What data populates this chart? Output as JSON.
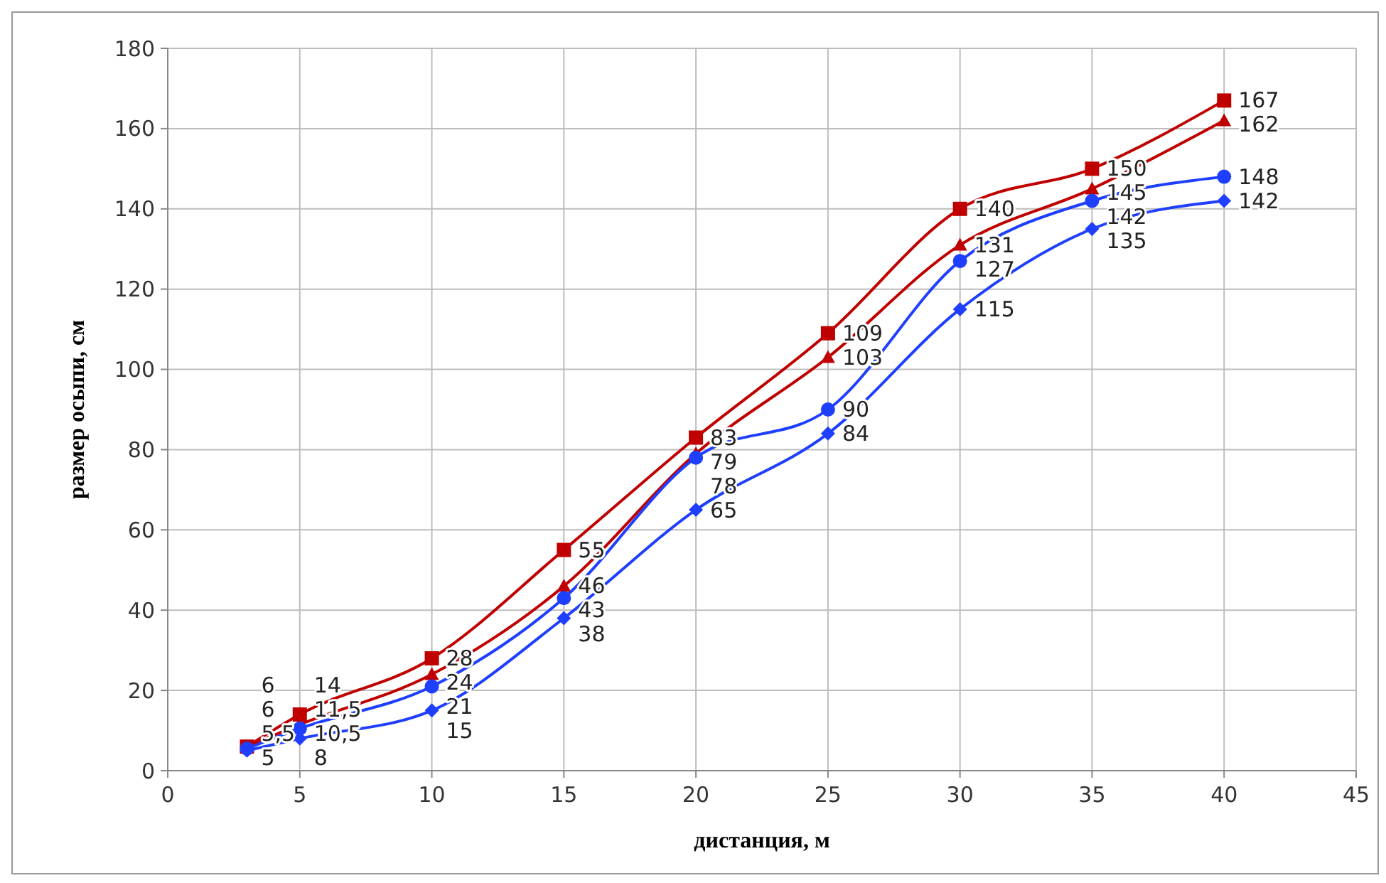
{
  "chart_data": {
    "type": "line",
    "xlabel": "дистанция, м",
    "ylabel": "размер осыпи, см",
    "x": [
      3,
      5,
      10,
      15,
      20,
      25,
      30,
      35,
      40
    ],
    "series": [
      {
        "color": "#c00000",
        "marker": "square",
        "values": [
          6,
          14,
          28,
          55,
          83,
          109,
          140,
          150,
          167
        ],
        "value_labels": [
          "6",
          "14",
          "28",
          "55",
          "83",
          "109",
          "140",
          "150",
          "167"
        ]
      },
      {
        "color": "#c00000",
        "marker": "triangle",
        "values": [
          6,
          11.5,
          24,
          46,
          79,
          103,
          131,
          145,
          162
        ],
        "value_labels": [
          "6",
          "11,5",
          "24",
          "46",
          "79",
          "103",
          "131",
          "145",
          "162"
        ]
      },
      {
        "color": "#1f3fff",
        "marker": "circle",
        "values": [
          5.5,
          10.5,
          21,
          43,
          78,
          90,
          127,
          142,
          148
        ],
        "value_labels": [
          "5,5",
          "10,5",
          "21",
          "43",
          "78",
          "90",
          "127",
          "142",
          "148"
        ]
      },
      {
        "color": "#1f3fff",
        "marker": "diamond",
        "values": [
          5,
          8,
          15,
          38,
          65,
          84,
          115,
          135,
          142
        ],
        "value_labels": [
          "5",
          "8",
          "15",
          "38",
          "65",
          "84",
          "115",
          "135",
          "142"
        ]
      }
    ],
    "xlim": [
      0,
      45
    ],
    "xticks": [
      0,
      5,
      10,
      15,
      20,
      25,
      30,
      35,
      40,
      45
    ],
    "ylim": [
      0,
      180
    ],
    "yticks": [
      0,
      20,
      40,
      60,
      80,
      100,
      120,
      140,
      160,
      180
    ],
    "grid": true,
    "line_style": "solid"
  }
}
